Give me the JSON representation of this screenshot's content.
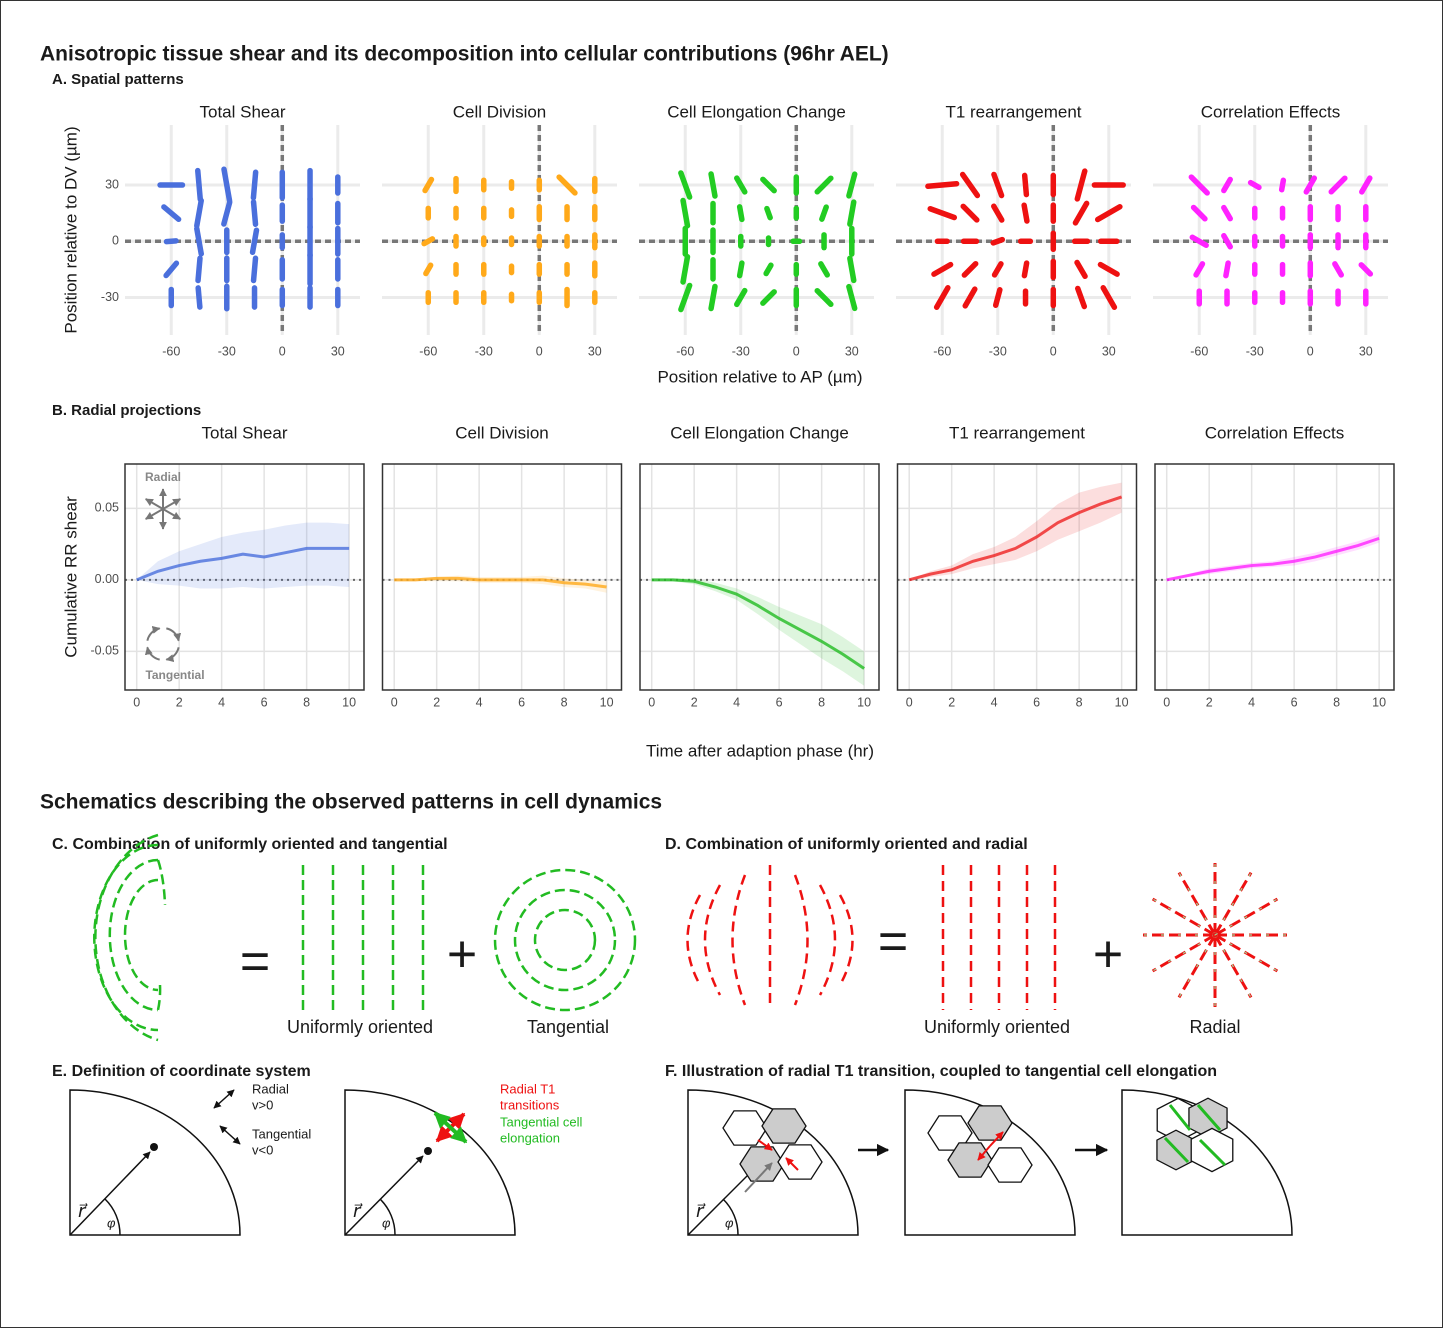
{
  "title": "Anisotropic tissue shear and its decomposition into cellular contributions (96hr AEL)",
  "panel_a": {
    "label": "A. Spatial patterns",
    "xlabel": "Position relative to AP (µm)",
    "ylabel": "Position relative to DV (µm)"
  },
  "panel_b": {
    "label": "B. Radial projections",
    "xlabel": "Time after adaption phase (hr)",
    "ylabel": "Cumulative RR shear"
  },
  "chart_data": [
    {
      "type": "vector-field",
      "title": "Total Shear",
      "color": "#4a6fdc",
      "xlim": [
        -85,
        42
      ],
      "ylim": [
        -50,
        62
      ],
      "xticks": [
        -60,
        -30,
        0,
        30
      ],
      "yticks": [
        -30,
        0,
        30
      ],
      "grid": true,
      "zero_lines": true,
      "x": [
        -60,
        -45,
        -30,
        -15,
        0,
        15,
        30,
        -60,
        -45,
        -30,
        -15,
        0,
        15,
        30,
        -60,
        -45,
        -30,
        -15,
        0,
        15,
        30,
        -60,
        -45,
        -30,
        -15,
        0,
        15,
        30,
        -60,
        -45,
        -30,
        -15,
        0,
        15,
        30
      ],
      "y": [
        30,
        30,
        30,
        30,
        30,
        30,
        30,
        15,
        15,
        15,
        15,
        15,
        15,
        15,
        0,
        0,
        0,
        0,
        0,
        0,
        0,
        -15,
        -15,
        -15,
        -15,
        -15,
        -15,
        -15,
        -30,
        -30,
        -30,
        -30,
        -30,
        -30,
        -30
      ],
      "angle": [
        0,
        95,
        100,
        85,
        90,
        90,
        90,
        140,
        80,
        75,
        95,
        90,
        90,
        90,
        5,
        100,
        90,
        80,
        90,
        90,
        90,
        50,
        85,
        90,
        85,
        90,
        90,
        90,
        90,
        95,
        90,
        90,
        90,
        90,
        90
      ],
      "magnitude": [
        0.7,
        0.9,
        1.0,
        0.8,
        0.8,
        0.9,
        0.5,
        0.6,
        0.8,
        0.7,
        0.7,
        0.5,
        0.9,
        0.6,
        0.3,
        0.8,
        0.7,
        0.7,
        0.4,
        0.9,
        0.8,
        0.5,
        0.7,
        0.7,
        0.7,
        0.6,
        0.9,
        0.6,
        0.5,
        0.6,
        0.7,
        0.6,
        0.5,
        0.6,
        0.5
      ]
    },
    {
      "type": "vector-field",
      "title": "Cell Division",
      "color": "#ffa91a",
      "xlim": [
        -85,
        42
      ],
      "ylim": [
        -50,
        62
      ],
      "xticks": [
        -60,
        -30,
        0,
        30
      ],
      "yticks": [
        -30,
        0,
        30
      ],
      "grid": true,
      "zero_lines": true,
      "x": [
        -60,
        -45,
        -30,
        -15,
        0,
        15,
        30,
        -60,
        -45,
        -30,
        -15,
        0,
        15,
        30,
        -60,
        -45,
        -30,
        -15,
        0,
        15,
        30,
        -60,
        -45,
        -30,
        -15,
        0,
        15,
        30,
        -60,
        -45,
        -30,
        -15,
        0,
        15,
        30
      ],
      "y": [
        30,
        30,
        30,
        30,
        30,
        30,
        30,
        15,
        15,
        15,
        15,
        15,
        15,
        15,
        0,
        0,
        0,
        0,
        0,
        0,
        0,
        -15,
        -15,
        -15,
        -15,
        -15,
        -15,
        -15,
        -30,
        -30,
        -30,
        -30,
        -30,
        -30,
        -30
      ],
      "angle": [
        60,
        90,
        90,
        90,
        90,
        135,
        90,
        90,
        90,
        90,
        90,
        90,
        90,
        90,
        30,
        90,
        90,
        90,
        90,
        90,
        90,
        60,
        90,
        90,
        90,
        90,
        90,
        90,
        90,
        90,
        90,
        90,
        90,
        90,
        90
      ],
      "magnitude": [
        0.4,
        0.4,
        0.3,
        0.2,
        0.3,
        0.7,
        0.4,
        0.3,
        0.3,
        0.3,
        0.2,
        0.4,
        0.4,
        0.4,
        0.3,
        0.3,
        0.2,
        0.2,
        0.3,
        0.3,
        0.4,
        0.3,
        0.3,
        0.3,
        0.2,
        0.3,
        0.3,
        0.4,
        0.3,
        0.3,
        0.3,
        0.2,
        0.3,
        0.5,
        0.3
      ]
    },
    {
      "type": "vector-field",
      "title": "Cell Elongation Change",
      "color": "#22cc22",
      "xlim": [
        -85,
        42
      ],
      "ylim": [
        -50,
        62
      ],
      "xticks": [
        -60,
        -30,
        0,
        30
      ],
      "yticks": [
        -30,
        0,
        30
      ],
      "grid": true,
      "zero_lines": true,
      "x": [
        -60,
        -45,
        -30,
        -15,
        0,
        15,
        30,
        -60,
        -45,
        -30,
        -15,
        0,
        15,
        30,
        -60,
        -45,
        -30,
        -15,
        0,
        15,
        30,
        -60,
        -45,
        -30,
        -15,
        0,
        15,
        30,
        -60,
        -45,
        -30,
        -15,
        0,
        15,
        30
      ],
      "y": [
        30,
        30,
        30,
        30,
        30,
        30,
        30,
        15,
        15,
        15,
        15,
        15,
        15,
        15,
        0,
        0,
        0,
        0,
        0,
        0,
        0,
        -15,
        -15,
        -15,
        -15,
        -15,
        -15,
        -15,
        -30,
        -30,
        -30,
        -30,
        -30,
        -30,
        -30
      ],
      "angle": [
        110,
        100,
        120,
        135,
        90,
        45,
        75,
        100,
        90,
        100,
        110,
        90,
        70,
        80,
        90,
        90,
        90,
        90,
        0,
        90,
        90,
        80,
        90,
        80,
        60,
        90,
        120,
        100,
        70,
        80,
        60,
        45,
        90,
        135,
        105
      ],
      "magnitude": [
        0.8,
        0.7,
        0.5,
        0.5,
        0.5,
        0.6,
        0.7,
        0.8,
        0.6,
        0.4,
        0.3,
        0.3,
        0.4,
        0.7,
        0.8,
        0.7,
        0.3,
        0.2,
        0.2,
        0.4,
        0.8,
        0.8,
        0.6,
        0.4,
        0.3,
        0.3,
        0.4,
        0.7,
        0.8,
        0.7,
        0.5,
        0.5,
        0.5,
        0.6,
        0.7
      ]
    },
    {
      "type": "vector-field",
      "title": "T1 rearrangement",
      "color": "#ee1111",
      "xlim": [
        -85,
        42
      ],
      "ylim": [
        -50,
        62
      ],
      "xticks": [
        -60,
        -30,
        0,
        30
      ],
      "yticks": [
        -30,
        0,
        30
      ],
      "grid": true,
      "zero_lines": true,
      "x": [
        -60,
        -45,
        -30,
        -15,
        0,
        15,
        30,
        -60,
        -45,
        -30,
        -15,
        0,
        15,
        30,
        -60,
        -45,
        -30,
        -15,
        0,
        15,
        30,
        -60,
        -45,
        -30,
        -15,
        0,
        15,
        30,
        -60,
        -45,
        -30,
        -15,
        0,
        15,
        30
      ],
      "y": [
        30,
        30,
        30,
        30,
        30,
        30,
        30,
        15,
        15,
        15,
        15,
        15,
        15,
        15,
        0,
        0,
        0,
        0,
        0,
        0,
        0,
        -15,
        -15,
        -15,
        -15,
        -15,
        -15,
        -15,
        -30,
        -30,
        -30,
        -30,
        -30,
        -30,
        -30
      ],
      "angle": [
        5,
        125,
        110,
        95,
        90,
        75,
        0,
        160,
        135,
        120,
        100,
        90,
        60,
        30,
        0,
        0,
        20,
        0,
        90,
        0,
        0,
        30,
        45,
        60,
        80,
        90,
        120,
        150,
        60,
        60,
        75,
        90,
        90,
        110,
        120
      ],
      "magnitude": [
        0.9,
        0.8,
        0.7,
        0.6,
        0.6,
        0.9,
        0.9,
        0.8,
        0.6,
        0.5,
        0.5,
        0.5,
        0.7,
        0.8,
        0.3,
        0.4,
        0.3,
        0.3,
        0.5,
        0.4,
        0.5,
        0.6,
        0.5,
        0.4,
        0.4,
        0.5,
        0.5,
        0.6,
        0.7,
        0.6,
        0.5,
        0.4,
        0.5,
        0.6,
        0.7
      ]
    },
    {
      "type": "vector-field",
      "title": "Correlation Effects",
      "color": "#ff22ff",
      "xlim": [
        -85,
        42
      ],
      "ylim": [
        -50,
        62
      ],
      "xticks": [
        -60,
        -30,
        0,
        30
      ],
      "yticks": [
        -30,
        0,
        30
      ],
      "grid": true,
      "zero_lines": true,
      "x": [
        -60,
        -45,
        -30,
        -15,
        0,
        15,
        30,
        -60,
        -45,
        -30,
        -15,
        0,
        15,
        30,
        -60,
        -45,
        -30,
        -15,
        0,
        15,
        30,
        -60,
        -45,
        -30,
        -15,
        0,
        15,
        30,
        -60,
        -45,
        -30,
        -15,
        0,
        15,
        30
      ],
      "y": [
        30,
        30,
        30,
        30,
        30,
        30,
        30,
        15,
        15,
        15,
        15,
        15,
        15,
        15,
        0,
        0,
        0,
        0,
        0,
        0,
        0,
        -15,
        -15,
        -15,
        -15,
        -15,
        -15,
        -15,
        -30,
        -30,
        -30,
        -30,
        -30,
        -30,
        -30
      ],
      "angle": [
        135,
        60,
        150,
        80,
        60,
        45,
        60,
        135,
        120,
        90,
        90,
        90,
        90,
        90,
        150,
        120,
        90,
        90,
        90,
        90,
        90,
        60,
        80,
        90,
        90,
        90,
        120,
        135,
        90,
        90,
        90,
        90,
        90,
        90,
        90
      ],
      "magnitude": [
        0.7,
        0.4,
        0.3,
        0.3,
        0.5,
        0.6,
        0.5,
        0.5,
        0.4,
        0.3,
        0.3,
        0.4,
        0.4,
        0.4,
        0.5,
        0.4,
        0.3,
        0.3,
        0.4,
        0.4,
        0.4,
        0.4,
        0.4,
        0.3,
        0.3,
        0.4,
        0.4,
        0.4,
        0.4,
        0.4,
        0.3,
        0.3,
        0.4,
        0.4,
        0.4
      ]
    },
    {
      "type": "line",
      "title": "Total Shear",
      "color": "#4a6fdc",
      "xlim": [
        -0.55,
        10.7
      ],
      "ylim": [
        -0.077,
        0.081
      ],
      "xticks": [
        0,
        2,
        4,
        6,
        8,
        10
      ],
      "yticks": [
        -0.05,
        {
          "value": 0,
          "label": "0.00"
        },
        0.05
      ],
      "grid": true,
      "zero_line": true,
      "annotations": [
        "Radial",
        "Tangential"
      ],
      "x": [
        0,
        1,
        2,
        3,
        4,
        5,
        6,
        7,
        8,
        9,
        10
      ],
      "values": [
        0,
        0.006,
        0.01,
        0.013,
        0.015,
        0.018,
        0.016,
        0.019,
        0.022,
        0.022,
        0.022
      ],
      "lower": [
        0,
        -0.003,
        -0.004,
        -0.006,
        -0.006,
        -0.005,
        -0.006,
        -0.005,
        -0.004,
        -0.004,
        -0.005
      ],
      "upper": [
        0,
        0.013,
        0.02,
        0.025,
        0.03,
        0.033,
        0.035,
        0.038,
        0.04,
        0.04,
        0.039
      ]
    },
    {
      "type": "line",
      "title": "Cell Division",
      "color": "#ffa91a",
      "xlim": [
        -0.55,
        10.7
      ],
      "ylim": [
        -0.077,
        0.081
      ],
      "xticks": [
        0,
        2,
        4,
        6,
        8,
        10
      ],
      "yticks": [
        -0.05,
        {
          "value": 0,
          "label": "0.00"
        },
        0.05
      ],
      "grid": true,
      "zero_line": true,
      "x": [
        0,
        1,
        2,
        3,
        4,
        5,
        6,
        7,
        8,
        9,
        10
      ],
      "values": [
        0,
        0,
        0.001,
        0.001,
        0,
        0,
        0,
        0,
        -0.002,
        -0.003,
        -0.005
      ],
      "lower": [
        0,
        -0.001,
        -0.001,
        -0.001,
        -0.002,
        -0.002,
        -0.002,
        -0.003,
        -0.005,
        -0.006,
        -0.009
      ],
      "upper": [
        0,
        0.001,
        0.002,
        0.003,
        0.002,
        0.002,
        0.002,
        0.003,
        0.001,
        0,
        -0.001
      ]
    },
    {
      "type": "line",
      "title": "Cell Elongation Change",
      "color": "#22bb22",
      "xlim": [
        -0.55,
        10.7
      ],
      "ylim": [
        -0.077,
        0.081
      ],
      "xticks": [
        0,
        2,
        4,
        6,
        8,
        10
      ],
      "yticks": [
        -0.05,
        {
          "value": 0,
          "label": "0.00"
        },
        0.05
      ],
      "grid": true,
      "zero_line": true,
      "x": [
        0,
        1,
        2,
        3,
        4,
        5,
        6,
        7,
        8,
        9,
        10
      ],
      "values": [
        0,
        0,
        -0.001,
        -0.005,
        -0.01,
        -0.018,
        -0.027,
        -0.035,
        -0.043,
        -0.052,
        -0.062
      ],
      "lower": [
        0,
        -0.001,
        -0.003,
        -0.008,
        -0.014,
        -0.024,
        -0.035,
        -0.045,
        -0.055,
        -0.064,
        -0.074
      ],
      "upper": [
        0,
        0.001,
        0.001,
        -0.002,
        -0.006,
        -0.012,
        -0.019,
        -0.025,
        -0.031,
        -0.04,
        -0.05
      ]
    },
    {
      "type": "line",
      "title": "T1 rearrangement",
      "color": "#ee2222",
      "xlim": [
        -0.55,
        10.7
      ],
      "ylim": [
        -0.077,
        0.081
      ],
      "xticks": [
        0,
        2,
        4,
        6,
        8,
        10
      ],
      "yticks": [
        -0.05,
        {
          "value": 0,
          "label": "0.00"
        },
        0.05
      ],
      "grid": true,
      "zero_line": true,
      "x": [
        0,
        1,
        2,
        3,
        4,
        5,
        6,
        7,
        8,
        9,
        10
      ],
      "values": [
        0,
        0.004,
        0.007,
        0.013,
        0.017,
        0.022,
        0.03,
        0.04,
        0.047,
        0.053,
        0.058
      ],
      "lower": [
        0,
        0.002,
        0.004,
        0.008,
        0.011,
        0.014,
        0.02,
        0.028,
        0.034,
        0.04,
        0.047
      ],
      "upper": [
        0,
        0.006,
        0.01,
        0.018,
        0.023,
        0.03,
        0.041,
        0.053,
        0.061,
        0.065,
        0.068
      ]
    },
    {
      "type": "line",
      "title": "Correlation Effects",
      "color": "#ff22ff",
      "xlim": [
        -0.55,
        10.7
      ],
      "ylim": [
        -0.077,
        0.081
      ],
      "xticks": [
        0,
        2,
        4,
        6,
        8,
        10
      ],
      "yticks": [
        -0.05,
        {
          "value": 0,
          "label": "0.00"
        },
        0.05
      ],
      "grid": true,
      "zero_line": true,
      "x": [
        0,
        1,
        2,
        3,
        4,
        5,
        6,
        7,
        8,
        9,
        10
      ],
      "values": [
        0,
        0.003,
        0.006,
        0.008,
        0.01,
        0.011,
        0.013,
        0.016,
        0.02,
        0.024,
        0.029
      ],
      "lower": [
        0,
        0.002,
        0.004,
        0.006,
        0.008,
        0.009,
        0.01,
        0.013,
        0.017,
        0.021,
        0.026
      ],
      "upper": [
        0,
        0.004,
        0.008,
        0.01,
        0.012,
        0.013,
        0.016,
        0.019,
        0.023,
        0.027,
        0.032
      ]
    }
  ],
  "schematics": {
    "title": "Schematics describing the observed patterns in cell dynamics",
    "c": {
      "title": "C. Combination of uniformly oriented and tangential",
      "equals": "=",
      "plus": "+",
      "uniform": "Uniformly oriented",
      "tangential": "Tangential"
    },
    "d": {
      "title": "D. Combination of uniformly oriented and radial",
      "equals": "=",
      "plus": "+",
      "uniform": "Uniformly oriented",
      "radial": "Radial"
    },
    "e": {
      "title": "E. Definition of coordinate system",
      "radial": "Radial",
      "radial_sign": "v>0",
      "tangential": "Tangential",
      "tangential_sign": "v<0",
      "t1_line1": "Radial T1",
      "t1_line2": "transitions",
      "elong_line1": "Tangential cell",
      "elong_line2": "elongation",
      "r": "r⃗",
      "phi": "φ"
    },
    "f": {
      "title": "F. Illustration of radial T1 transition, coupled to tangential cell elongation",
      "r": "r⃗",
      "phi": "φ"
    }
  }
}
